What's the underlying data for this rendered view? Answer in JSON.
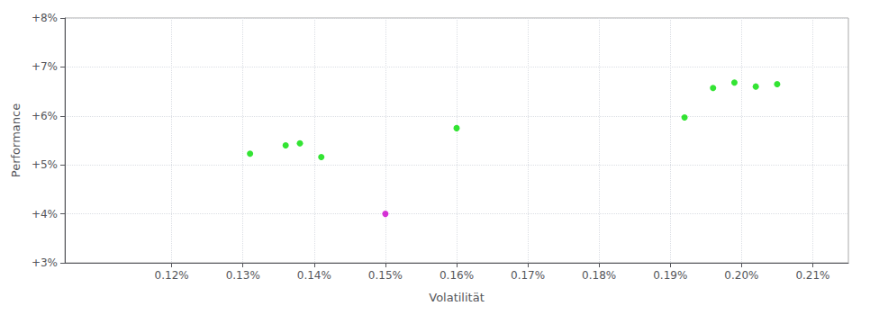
{
  "chart_data": {
    "type": "scatter",
    "xlabel": "Volatilität",
    "ylabel": "Performance",
    "xlim": [
      0.00105,
      0.00215
    ],
    "ylim": [
      0.03,
      0.08
    ],
    "xticks": [
      {
        "value": 0.0012,
        "label": "0.12%"
      },
      {
        "value": 0.0013,
        "label": "0.13%"
      },
      {
        "value": 0.0014,
        "label": "0.14%"
      },
      {
        "value": 0.0015,
        "label": "0.15%"
      },
      {
        "value": 0.0016,
        "label": "0.16%"
      },
      {
        "value": 0.0017,
        "label": "0.17%"
      },
      {
        "value": 0.0018,
        "label": "0.18%"
      },
      {
        "value": 0.0019,
        "label": "0.19%"
      },
      {
        "value": 0.002,
        "label": "0.20%"
      },
      {
        "value": 0.0021,
        "label": "0.21%"
      }
    ],
    "yticks": [
      {
        "value": 0.03,
        "label": "+3%"
      },
      {
        "value": 0.04,
        "label": "+4%"
      },
      {
        "value": 0.05,
        "label": "+5%"
      },
      {
        "value": 0.06,
        "label": "+6%"
      },
      {
        "value": 0.07,
        "label": "+7%"
      },
      {
        "value": 0.08,
        "label": "+8%"
      }
    ],
    "grid": true,
    "series": [
      {
        "color": "#00dd00",
        "x": [
          0.00131,
          0.00136,
          0.00138,
          0.00141,
          0.0016,
          0.00192,
          0.00196,
          0.00199,
          0.00202,
          0.00205
        ],
        "values": [
          0.0523,
          0.054,
          0.0544,
          0.0516,
          0.0575,
          0.0597,
          0.0657,
          0.0668,
          0.066,
          0.0665
        ]
      },
      {
        "color": "#cc00cc",
        "x": [
          0.0015
        ],
        "values": [
          0.04
        ]
      }
    ]
  }
}
